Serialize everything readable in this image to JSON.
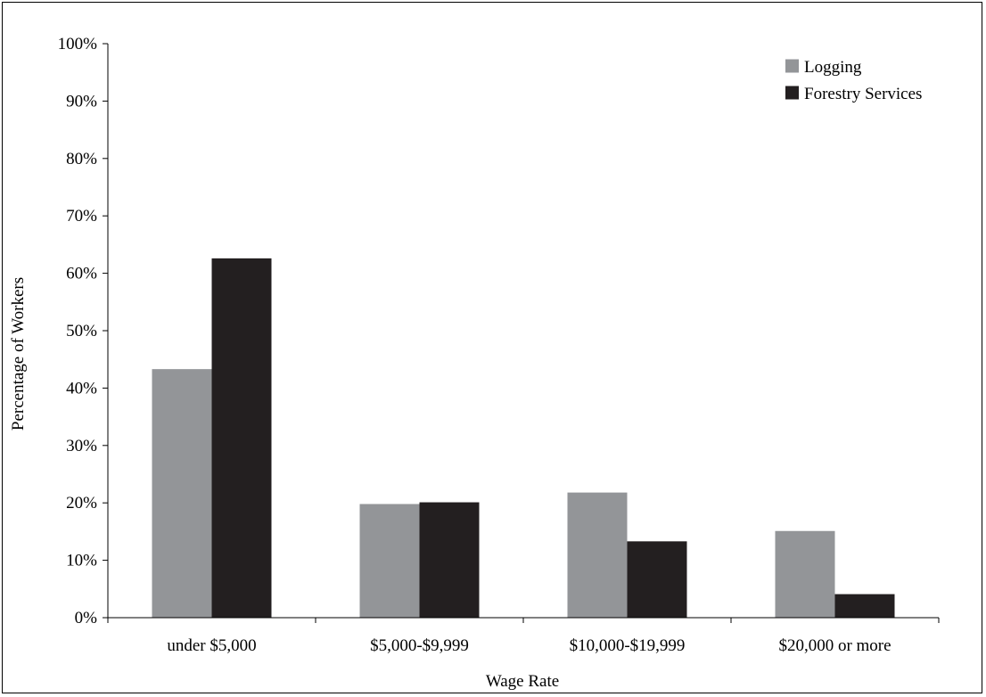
{
  "chart_data": {
    "type": "bar",
    "title": "",
    "xlabel": "Wage Rate",
    "ylabel": "Percentage of Workers",
    "ylim": [
      0,
      100
    ],
    "yticks": [
      0,
      10,
      20,
      30,
      40,
      50,
      60,
      70,
      80,
      90,
      100
    ],
    "ytick_suffix": "%",
    "grid": false,
    "legend_position": "top-right",
    "categories": [
      "under $5,000",
      "$5,000-$9,999",
      "$10,000-$19,999",
      "$20,000 or more"
    ],
    "series": [
      {
        "name": "Logging",
        "color": "#939598",
        "values": [
          43.3,
          19.8,
          21.8,
          15.1
        ]
      },
      {
        "name": "Forestry Services",
        "color": "#231f20",
        "values": [
          62.6,
          20.1,
          13.3,
          4.1
        ]
      }
    ]
  }
}
